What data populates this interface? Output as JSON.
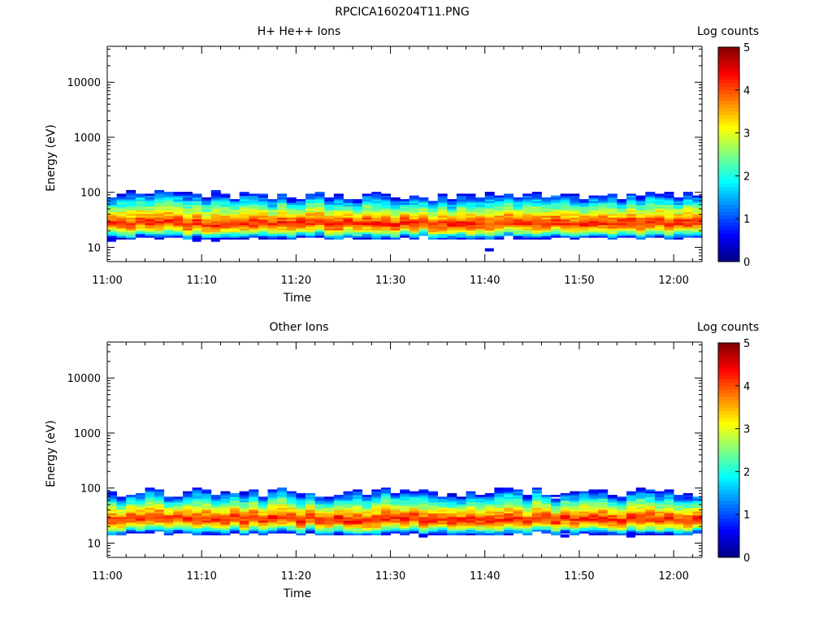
{
  "figure": {
    "title": "RPCICA160204T11.PNG"
  },
  "chart_data": [
    {
      "type": "heatmap",
      "title": "H+ He++ Ions",
      "xlabel": "Time",
      "ylabel": "Energy (eV)",
      "y_scale": "log",
      "x_range": [
        "11:00",
        "12:03"
      ],
      "y_range": [
        5.5,
        45000
      ],
      "x_tick_labels": [
        "11:00",
        "11:10",
        "11:20",
        "11:30",
        "11:40",
        "11:50",
        "12:00"
      ],
      "y_tick_labels": [
        "10",
        "100",
        "1000",
        "10000"
      ],
      "colorbar": {
        "label": "Log counts",
        "range": [
          0,
          5
        ],
        "tick_labels": [
          "0",
          "1",
          "2",
          "3",
          "4",
          "5"
        ]
      },
      "band": {
        "peak_energy_ev": 28,
        "lower_edge_ev": 15,
        "upper_edge_ev": 90,
        "peak_log_counts": 4.2
      },
      "sporadic_low_points": [
        {
          "time": "11:00",
          "energy_ev": 13.5
        },
        {
          "time": "11:09",
          "energy_ev": 13.5
        },
        {
          "time": "11:11",
          "energy_ev": 13.5
        },
        {
          "time": "11:40",
          "energy_ev": 9
        }
      ]
    },
    {
      "type": "heatmap",
      "title": "Other Ions",
      "xlabel": "Time",
      "ylabel": "Energy (eV)",
      "y_scale": "log",
      "x_range": [
        "11:00",
        "12:03"
      ],
      "y_range": [
        5.5,
        45000
      ],
      "x_tick_labels": [
        "11:00",
        "11:10",
        "11:20",
        "11:30",
        "11:40",
        "11:50",
        "12:00"
      ],
      "y_tick_labels": [
        "10",
        "100",
        "1000",
        "10000"
      ],
      "colorbar": {
        "label": "Log counts",
        "range": [
          0,
          5
        ],
        "tick_labels": [
          "0",
          "1",
          "2",
          "3",
          "4",
          "5"
        ]
      },
      "band": {
        "peak_energy_ev": 28,
        "lower_edge_ev": 15,
        "upper_edge_ev": 85,
        "peak_log_counts": 4.2
      },
      "sporadic_low_points": [
        {
          "time": "11:33",
          "energy_ev": 13.5
        },
        {
          "time": "11:48",
          "energy_ev": 13.5
        },
        {
          "time": "11:55",
          "energy_ev": 13.5
        }
      ]
    }
  ]
}
